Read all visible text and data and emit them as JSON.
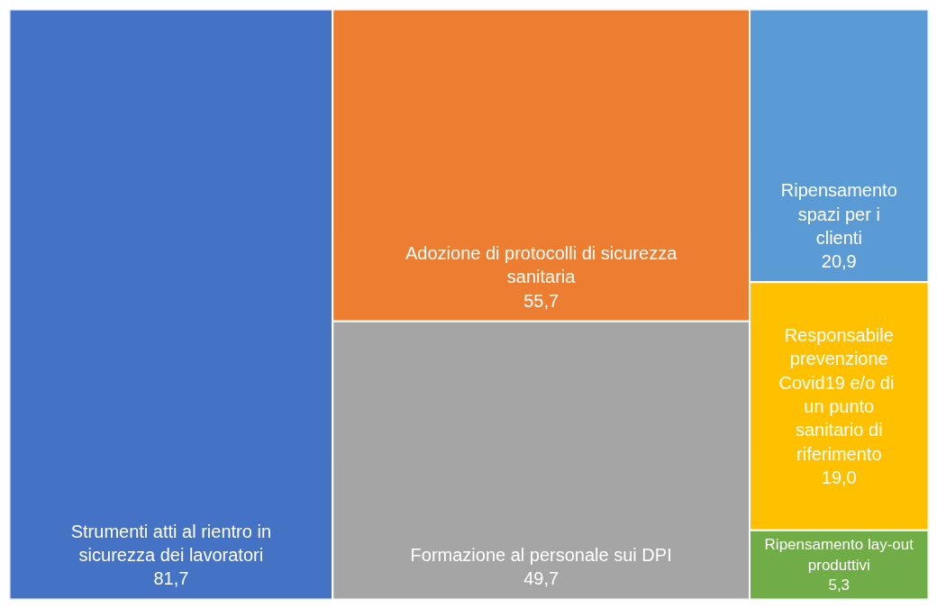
{
  "chart_data": {
    "type": "other",
    "categories": [
      "Strumenti atti al rientro in sicurezza dei lavoratori",
      "Adozione di protocolli di sicurezza sanitaria",
      "Formazione al personale sui DPI",
      "Ripensamento spazi per i clienti",
      "Responsabile prevenzione Covid19  e/o di un punto sanitario di riferimento",
      "Ripensamento lay-out produttivi"
    ],
    "values": [
      81.7,
      55.7,
      49.7,
      20.9,
      19.0,
      5.3
    ],
    "value_labels": [
      "81,7",
      "55,7",
      "49,7",
      "20,9",
      "19,0",
      "5,3"
    ],
    "colors": [
      "#4472c4",
      "#ed7d31",
      "#a5a5a5",
      "#5b9bd5",
      "#ffc000",
      "#70ad47"
    ]
  }
}
